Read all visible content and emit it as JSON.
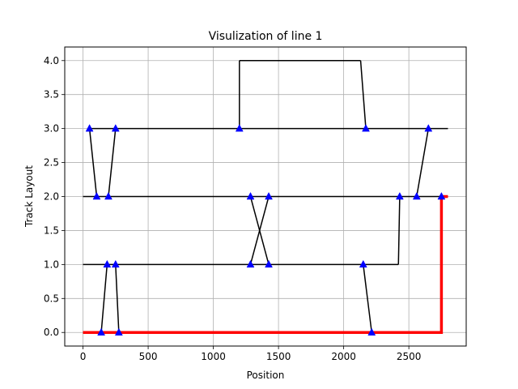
{
  "chart_data": {
    "type": "line",
    "title": "Visulization of line 1",
    "xlabel": "Position",
    "ylabel": "Track Layout",
    "xlim": [
      -140,
      2940
    ],
    "ylim": [
      -0.2,
      4.2
    ],
    "xticks": [
      0,
      500,
      1000,
      1500,
      2000,
      2500
    ],
    "yticks": [
      0.0,
      0.5,
      1.0,
      1.5,
      2.0,
      2.5,
      3.0,
      3.5,
      4.0
    ],
    "grid": true,
    "colors": {
      "track": "#000000",
      "route": "#ff0000",
      "marker": "#0000ff",
      "grid": "#b0b0b0"
    },
    "tracks": [
      {
        "x": [
          0,
          2750
        ],
        "y": [
          0,
          0
        ]
      },
      {
        "x": [
          0,
          2420
        ],
        "y": [
          1,
          1
        ]
      },
      {
        "x": [
          0,
          2800
        ],
        "y": [
          2,
          2
        ]
      },
      {
        "x": [
          50,
          2800
        ],
        "y": [
          3,
          3
        ]
      },
      {
        "x": [
          1200,
          1200
        ],
        "y": [
          3,
          4
        ]
      },
      {
        "x": [
          1200,
          2130
        ],
        "y": [
          4,
          4
        ]
      },
      {
        "x": [
          2130,
          2170
        ],
        "y": [
          4,
          3
        ]
      },
      {
        "x": [
          2420,
          2430
        ],
        "y": [
          1,
          2
        ]
      }
    ],
    "connections": [
      {
        "x": [
          50,
          105
        ],
        "y": [
          3,
          2
        ]
      },
      {
        "x": [
          195,
          250
        ],
        "y": [
          2,
          3
        ]
      },
      {
        "x": [
          140,
          185
        ],
        "y": [
          0,
          1
        ]
      },
      {
        "x": [
          250,
          275
        ],
        "y": [
          1,
          0
        ]
      },
      {
        "x": [
          1285,
          1425
        ],
        "y": [
          2,
          1
        ]
      },
      {
        "x": [
          1285,
          1425
        ],
        "y": [
          1,
          2
        ]
      },
      {
        "x": [
          2150,
          2215
        ],
        "y": [
          1,
          0
        ]
      },
      {
        "x": [
          2560,
          2650
        ],
        "y": [
          2,
          3
        ]
      }
    ],
    "markers": {
      "x": [
        50,
        105,
        195,
        250,
        140,
        185,
        250,
        275,
        1200,
        2170,
        1285,
        1425,
        1285,
        1425,
        2150,
        2215,
        2430,
        2560,
        2650,
        2750
      ],
      "y": [
        3,
        2,
        2,
        3,
        0,
        1,
        1,
        0,
        3,
        3,
        2,
        1,
        1,
        2,
        1,
        0,
        2,
        2,
        3,
        2
      ]
    },
    "route": {
      "x": [
        0,
        2750,
        2750,
        2800
      ],
      "y": [
        0,
        0,
        2,
        2
      ]
    }
  }
}
